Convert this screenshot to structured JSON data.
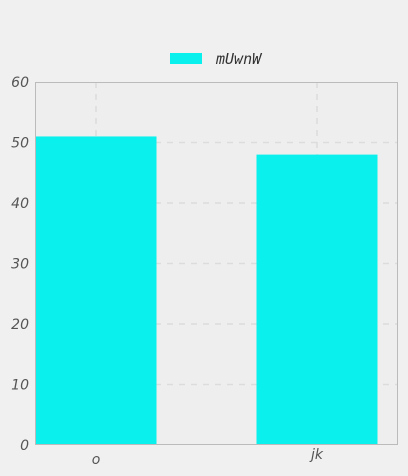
{
  "chart_data": {
    "type": "bar",
    "title": "",
    "xlabel": "",
    "ylabel": "",
    "categories": [
      "o",
      "jk"
    ],
    "series": [
      {
        "name": "mUwnW",
        "values": [
          51,
          48
        ],
        "color": "#0af0ec"
      }
    ],
    "ylim": [
      0,
      60
    ],
    "yticks": [
      "0",
      "10",
      "20",
      "30",
      "40",
      "50",
      "60"
    ],
    "grid": true,
    "legend": "top-center"
  },
  "colors": {
    "background": "#f0f0f0",
    "plot_background": "#eeeeee",
    "axis": "#bbbbbb",
    "grid": "#dcdcdc"
  }
}
